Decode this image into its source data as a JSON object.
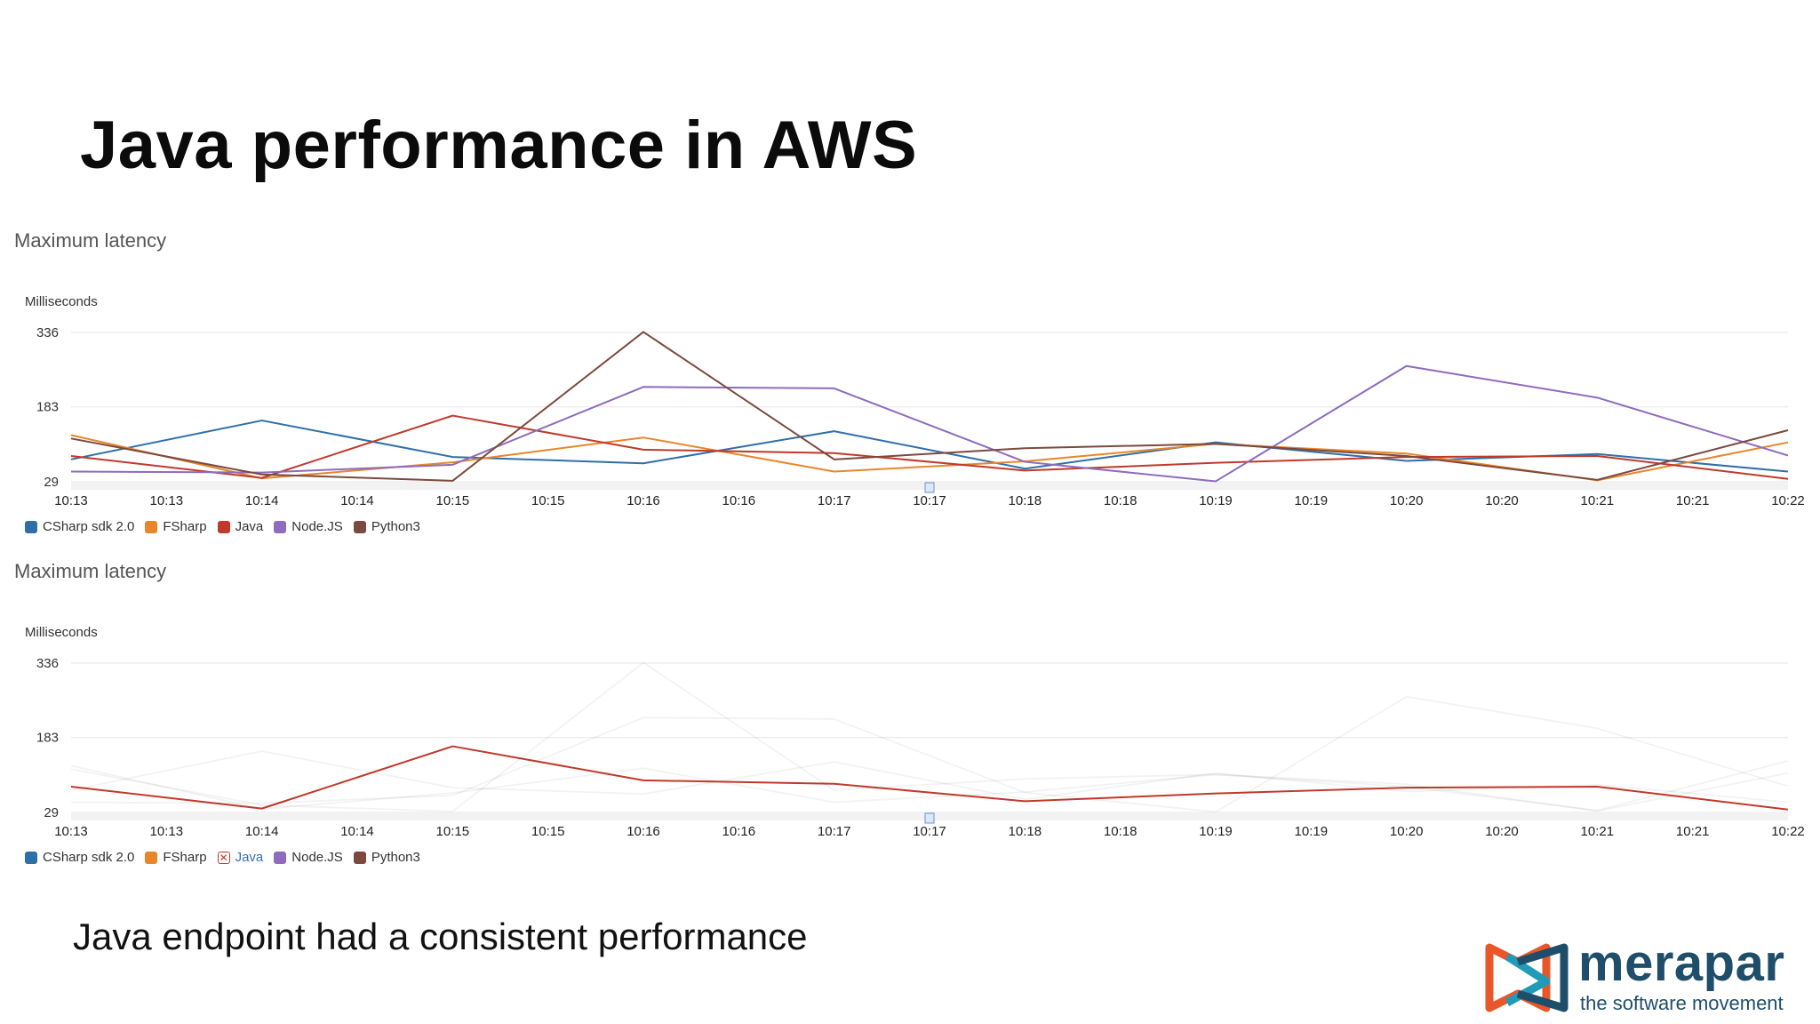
{
  "slide": {
    "title": "Java performance in AWS",
    "footer": "Java endpoint had a consistent performance"
  },
  "logo": {
    "name": "merapar",
    "tagline": "the software movement",
    "colors": {
      "orange": "#e8562a",
      "blue": "#1f4e6b",
      "teal": "#1f9bb8"
    }
  },
  "series_colors": {
    "CSharp sdk 2.0": "#2f6fa7",
    "FSharp": "#e8862a",
    "Java": "#c0392b",
    "Node.JS": "#8e6bbd",
    "Python3": "#7b4a3e"
  },
  "chart_data": [
    {
      "type": "line",
      "title": "Maximum latency",
      "ylabel": "Milliseconds",
      "xlabel": "",
      "yticks": [
        29,
        183,
        336
      ],
      "ylim": [
        29,
        336
      ],
      "categories": [
        "10:13",
        "10:13",
        "10:14",
        "10:14",
        "10:15",
        "10:15",
        "10:16",
        "10:16",
        "10:17",
        "10:17",
        "10:18",
        "10:18",
        "10:19",
        "10:19",
        "10:20",
        "10:20",
        "10:21",
        "10:21",
        "10:22"
      ],
      "x": [
        0,
        2,
        4,
        8,
        12,
        14,
        16,
        18,
        20,
        22,
        24,
        26,
        28,
        30,
        32,
        34,
        36
      ],
      "series": [
        {
          "name": "CSharp sdk 2.0",
          "x": [
            0,
            4,
            8,
            12,
            16,
            20,
            24,
            28,
            32,
            36
          ],
          "values": [
            75,
            155,
            80,
            67,
            133,
            56,
            110,
            72,
            86,
            50
          ]
        },
        {
          "name": "FSharp",
          "x": [
            0,
            4,
            8,
            12,
            16,
            20,
            24,
            28,
            32,
            36
          ],
          "values": [
            125,
            36,
            69,
            120,
            50,
            71,
            107,
            87,
            32,
            110
          ]
        },
        {
          "name": "Java",
          "x": [
            0,
            4,
            8,
            12,
            16,
            20,
            24,
            28,
            32,
            36
          ],
          "values": [
            82,
            37,
            165,
            95,
            88,
            52,
            68,
            80,
            82,
            35
          ]
        },
        {
          "name": "Node.JS",
          "x": [
            0,
            4,
            8,
            12,
            16,
            20,
            24,
            28,
            32,
            36
          ],
          "values": [
            50,
            48,
            64,
            224,
            221,
            70,
            30,
            267,
            202,
            83
          ]
        },
        {
          "name": "Python3",
          "x": [
            0,
            4,
            8,
            12,
            16,
            20,
            24,
            28,
            32,
            36
          ],
          "values": [
            118,
            44,
            31,
            337,
            75,
            98,
            107,
            82,
            33,
            135
          ]
        }
      ],
      "legend": {
        "position": "bottom-left",
        "hidden": []
      },
      "grid": true
    },
    {
      "type": "line",
      "title": "Maximum latency",
      "ylabel": "Milliseconds",
      "xlabel": "",
      "yticks": [
        29,
        183,
        336
      ],
      "ylim": [
        29,
        336
      ],
      "categories": [
        "10:13",
        "10:13",
        "10:14",
        "10:14",
        "10:15",
        "10:15",
        "10:16",
        "10:16",
        "10:17",
        "10:17",
        "10:18",
        "10:18",
        "10:19",
        "10:19",
        "10:20",
        "10:20",
        "10:21",
        "10:21",
        "10:22"
      ],
      "series": [
        {
          "name": "CSharp sdk 2.0",
          "x": [
            0,
            4,
            8,
            12,
            16,
            20,
            24,
            28,
            32,
            36
          ],
          "values": [
            75,
            155,
            80,
            67,
            133,
            56,
            110,
            72,
            86,
            50
          ]
        },
        {
          "name": "FSharp",
          "x": [
            0,
            4,
            8,
            12,
            16,
            20,
            24,
            28,
            32,
            36
          ],
          "values": [
            125,
            36,
            69,
            120,
            50,
            71,
            107,
            87,
            32,
            110
          ]
        },
        {
          "name": "Java",
          "x": [
            0,
            4,
            8,
            12,
            16,
            20,
            24,
            28,
            32,
            36
          ],
          "values": [
            82,
            37,
            165,
            95,
            88,
            52,
            68,
            80,
            82,
            35
          ]
        },
        {
          "name": "Node.JS",
          "x": [
            0,
            4,
            8,
            12,
            16,
            20,
            24,
            28,
            32,
            36
          ],
          "values": [
            50,
            48,
            64,
            224,
            221,
            70,
            30,
            267,
            202,
            83
          ]
        },
        {
          "name": "Python3",
          "x": [
            0,
            4,
            8,
            12,
            16,
            20,
            24,
            28,
            32,
            36
          ],
          "values": [
            118,
            44,
            31,
            337,
            75,
            98,
            107,
            82,
            33,
            135
          ]
        }
      ],
      "legend": {
        "position": "bottom-left",
        "highlighted": "Java"
      },
      "grid": true
    }
  ]
}
